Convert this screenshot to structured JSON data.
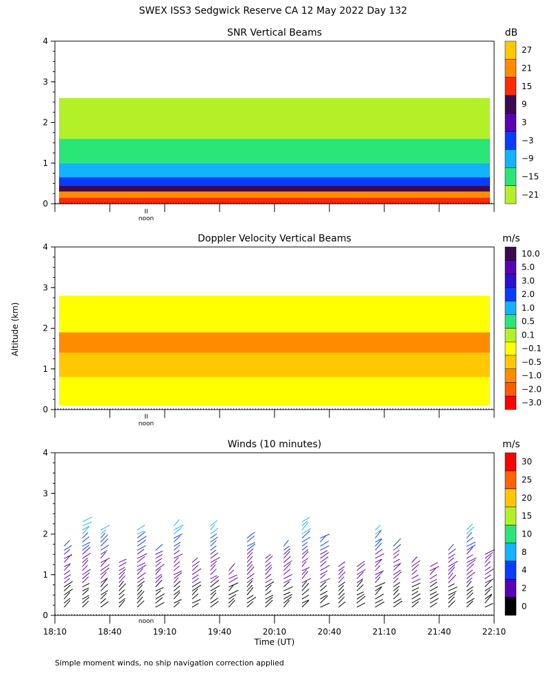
{
  "title": "SWEX ISS3 Sedgwick Reserve CA  12 May 2022 Day 132",
  "ylabel": "Altitude (km)",
  "xlabel": "Time (UT)",
  "footnote": "Simple moment winds, no ship navigation correction applied",
  "noon_label": "noon",
  "noon_marker": "II",
  "x_ticks": [
    "18:10",
    "18:40",
    "19:10",
    "19:40",
    "20:10",
    "20:40",
    "21:10",
    "21:40",
    "22:10"
  ],
  "chart_data": [
    {
      "type": "heatmap",
      "title": "SNR Vertical Beams",
      "unit": "dB",
      "y_ticks": [
        "0",
        "1",
        "2",
        "3",
        "4"
      ],
      "ylim": [
        0,
        4
      ],
      "xlim": [
        "18:10",
        "22:10"
      ],
      "colorbar": {
        "labels": [
          "27",
          "21",
          "15",
          "9",
          "3",
          "−3",
          "−9",
          "−15",
          "−21"
        ],
        "colors": [
          "#ffc800",
          "#ff8c00",
          "#ff2a00",
          "#3c0a50",
          "#5a00b4",
          "#0a3cff",
          "#12b4ff",
          "#28e678",
          "#b4f028"
        ]
      },
      "layers": [
        {
          "from": 0.0,
          "to": 0.15,
          "color": "#ff2a00"
        },
        {
          "from": 0.15,
          "to": 0.3,
          "color": "#ff8c00"
        },
        {
          "from": 0.3,
          "to": 0.45,
          "color": "#3c0a50"
        },
        {
          "from": 0.45,
          "to": 0.65,
          "color": "#0a3cff"
        },
        {
          "from": 0.65,
          "to": 1.0,
          "color": "#12b4ff"
        },
        {
          "from": 1.0,
          "to": 1.6,
          "color": "#28e678"
        },
        {
          "from": 1.6,
          "to": 2.6,
          "color": "#b4f028"
        }
      ]
    },
    {
      "type": "heatmap",
      "title": "Doppler Velocity Vertical Beams",
      "unit": "m/s",
      "y_ticks": [
        "0",
        "1",
        "2",
        "3",
        "4"
      ],
      "ylim": [
        0,
        4
      ],
      "xlim": [
        "18:10",
        "22:10"
      ],
      "colorbar": {
        "labels": [
          "10.0",
          "5.0",
          "3.0",
          "2.0",
          "1.0",
          "0.5",
          "0.1",
          "−0.1",
          "−0.5",
          "−1.0",
          "−2.0",
          "−3.0"
        ],
        "colors": [
          "#3c0a50",
          "#5a00b4",
          "#2a10d0",
          "#0a3cff",
          "#12b4ff",
          "#28e678",
          "#b4f028",
          "#ffff00",
          "#ffc800",
          "#ff8c00",
          "#ff5a00",
          "#ff0000"
        ]
      },
      "layers": [
        {
          "from": 0.1,
          "to": 0.8,
          "color": "#ffff00"
        },
        {
          "from": 0.8,
          "to": 1.4,
          "color": "#ffc800"
        },
        {
          "from": 1.4,
          "to": 1.9,
          "color": "#ff8c00"
        },
        {
          "from": 1.9,
          "to": 2.8,
          "color": "#ffff00"
        }
      ]
    },
    {
      "type": "scatter",
      "title": "Winds (10 minutes)",
      "unit": "m/s",
      "y_ticks": [
        "0",
        "1",
        "2",
        "3",
        "4"
      ],
      "ylim": [
        0,
        4
      ],
      "xlim": [
        "18:10",
        "22:10"
      ],
      "colorbar": {
        "labels": [
          "30",
          "25",
          "20",
          "15",
          "10",
          "8",
          "4",
          "2",
          "0"
        ],
        "colors": [
          "#ff0000",
          "#ff6400",
          "#ffc800",
          "#b4f028",
          "#28e678",
          "#12b4ff",
          "#0a3cff",
          "#5a00b4",
          "#000000"
        ]
      }
    }
  ]
}
